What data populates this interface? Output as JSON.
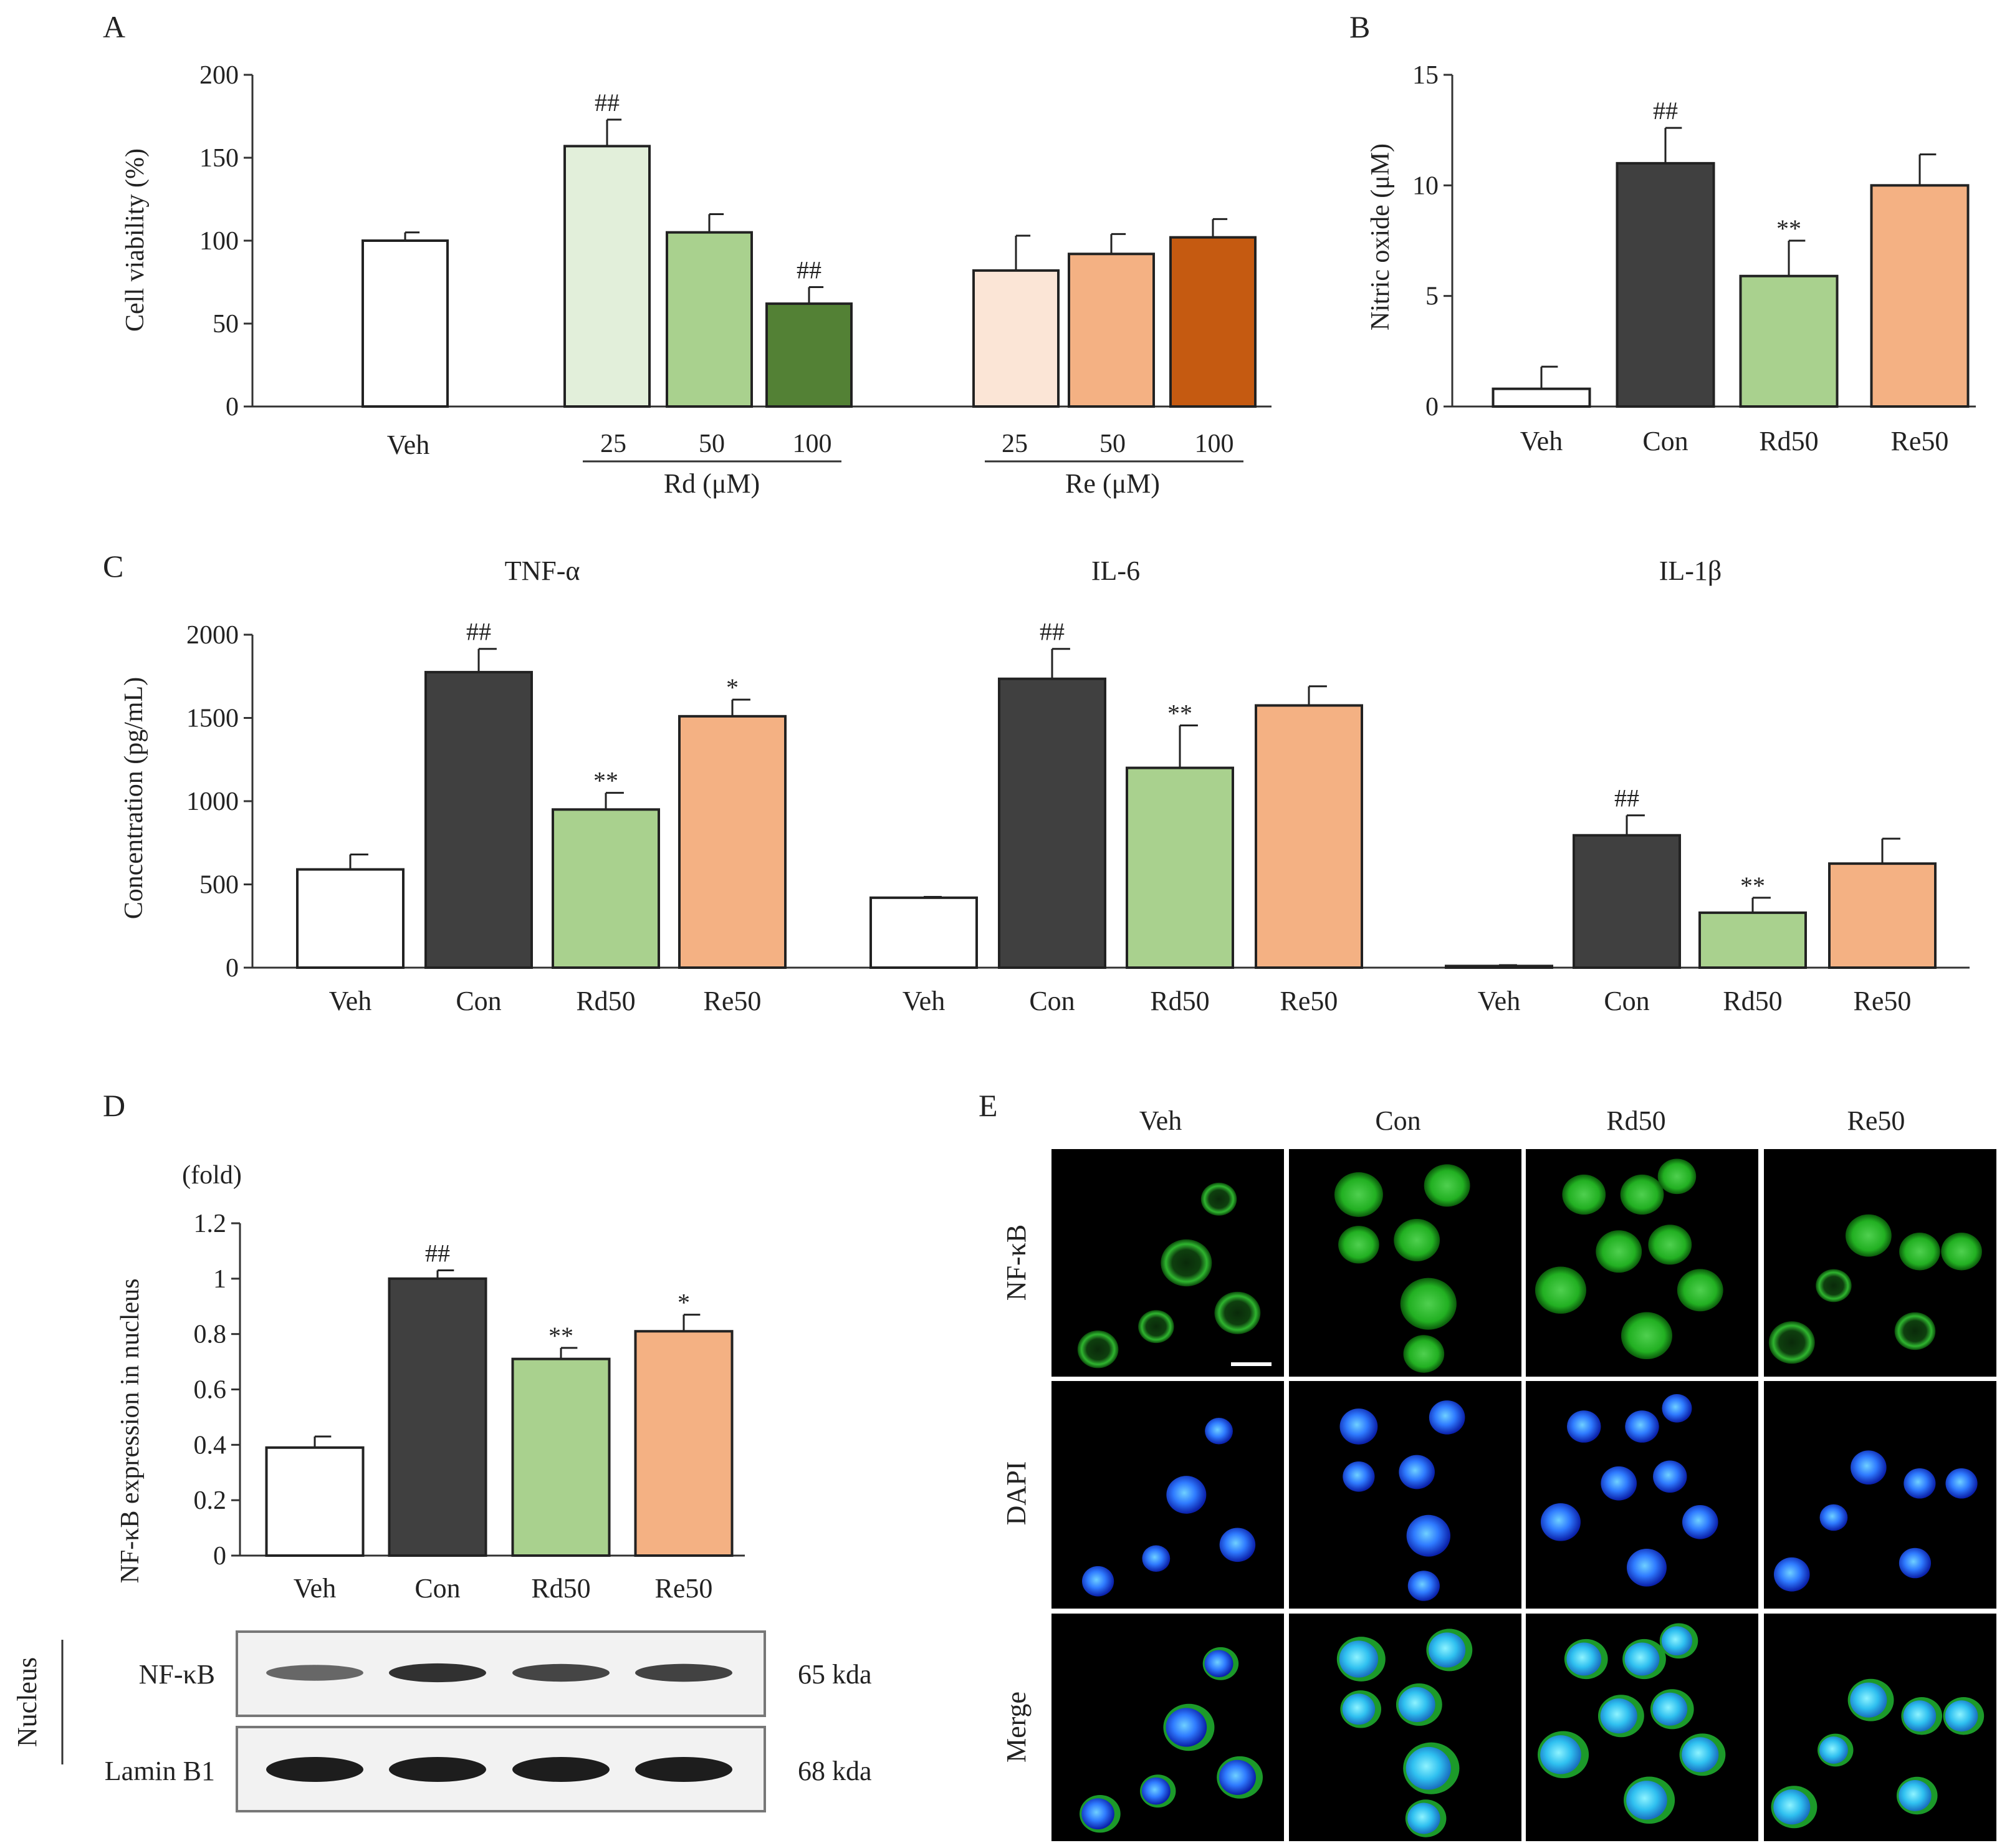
{
  "colors": {
    "veh": "#ffffff",
    "con": "#404040",
    "rd50": "#a9d18e",
    "re50": "#f4b183",
    "rd25": "#e2efda",
    "rd100": "#538135",
    "re25": "#fbe5d6",
    "re100": "#c55a11",
    "axis": "#333333"
  },
  "chart_data": [
    {
      "id": "A",
      "panel_label": "A",
      "type": "bar",
      "title": "",
      "ylabel": "Cell viability (%)",
      "xlabel": "",
      "ylim": [
        0,
        200
      ],
      "yticks": [
        "0",
        "50",
        "100",
        "150",
        "200"
      ],
      "group_labels": [
        {
          "label": "Veh"
        },
        {
          "label": "Rd (μM)",
          "subticks": [
            "25",
            "50",
            "100"
          ]
        },
        {
          "label": "Re (μM)",
          "subticks": [
            "25",
            "50",
            "100"
          ]
        }
      ],
      "bars": [
        {
          "group": "Veh",
          "value": 100,
          "error": 5,
          "sig": "",
          "color": "#ffffff"
        },
        {
          "group": "Rd",
          "dose": "25",
          "value": 157,
          "error": 16,
          "sig": "##",
          "color": "#e2efda"
        },
        {
          "group": "Rd",
          "dose": "50",
          "value": 105,
          "error": 11,
          "sig": "",
          "color": "#a9d18e"
        },
        {
          "group": "Rd",
          "dose": "100",
          "value": 62,
          "error": 10,
          "sig": "##",
          "color": "#538135"
        },
        {
          "group": "Re",
          "dose": "25",
          "value": 82,
          "error": 21,
          "sig": "",
          "color": "#fbe5d6"
        },
        {
          "group": "Re",
          "dose": "50",
          "value": 92,
          "error": 12,
          "sig": "",
          "color": "#f4b183"
        },
        {
          "group": "Re",
          "dose": "100",
          "value": 102,
          "error": 11,
          "sig": "",
          "color": "#c55a11"
        }
      ]
    },
    {
      "id": "B",
      "panel_label": "B",
      "type": "bar",
      "title": "",
      "ylabel": "Nitric oxide (μM)",
      "ylim": [
        0,
        15
      ],
      "yticks": [
        "0",
        "5",
        "10",
        "15"
      ],
      "categories": [
        "Veh",
        "Con",
        "Rd50",
        "Re50"
      ],
      "values": [
        0.8,
        11.0,
        5.9,
        10.0
      ],
      "errors": [
        1.0,
        1.6,
        1.6,
        1.4
      ],
      "sig": [
        "",
        "##",
        "**",
        ""
      ]
    },
    {
      "id": "C",
      "panel_label": "C",
      "type": "bar",
      "ylabel": "Concentration (pg/mL)",
      "ylim": [
        0,
        2000
      ],
      "yticks": [
        "0",
        "500",
        "1000",
        "1500",
        "2000"
      ],
      "categories": [
        "Veh",
        "Con",
        "Rd50",
        "Re50"
      ],
      "series": [
        {
          "name": "TNF-α",
          "values": [
            590,
            1775,
            950,
            1510
          ],
          "errors": [
            90,
            140,
            100,
            100
          ],
          "sig": [
            "",
            "##",
            "**",
            "*"
          ]
        },
        {
          "name": "IL-6",
          "values": [
            420,
            1735,
            1200,
            1575
          ],
          "errors": [
            5,
            180,
            255,
            115
          ],
          "sig": [
            "",
            "##",
            "**",
            ""
          ]
        },
        {
          "name": "IL-1β",
          "values": [
            10,
            795,
            330,
            625
          ],
          "errors": [
            5,
            120,
            90,
            150
          ],
          "sig": [
            "",
            "##",
            "**",
            ""
          ]
        }
      ]
    },
    {
      "id": "D",
      "panel_label": "D",
      "type": "bar",
      "unit_label": "(fold)",
      "ylabel": "NF-κB expression in nucleus",
      "ylim": [
        0,
        1.2
      ],
      "yticks": [
        "0",
        "0.2",
        "0.4",
        "0.6",
        "0.8",
        "1",
        "1.2"
      ],
      "categories": [
        "Veh",
        "Con",
        "Rd50",
        "Re50"
      ],
      "values": [
        0.39,
        1.0,
        0.71,
        0.81
      ],
      "errors": [
        0.04,
        0.03,
        0.04,
        0.06
      ],
      "sig": [
        "",
        "##",
        "**",
        "*"
      ]
    }
  ],
  "blot": {
    "side_label": "Nucleus",
    "rows": [
      {
        "protein": "NF-κB",
        "mw": "65 kda",
        "band_intensity": [
          0.45,
          0.85,
          0.7,
          0.72
        ]
      },
      {
        "protein": "Lamin B1",
        "mw": "68 kda",
        "band_intensity": [
          1.0,
          1.0,
          1.0,
          1.0
        ]
      }
    ]
  },
  "micrographs": {
    "panel_label": "E",
    "columns": [
      "Veh",
      "Con",
      "Rd50",
      "Re50"
    ],
    "rows": [
      "NF-κB",
      "DAPI",
      "Merge"
    ]
  }
}
